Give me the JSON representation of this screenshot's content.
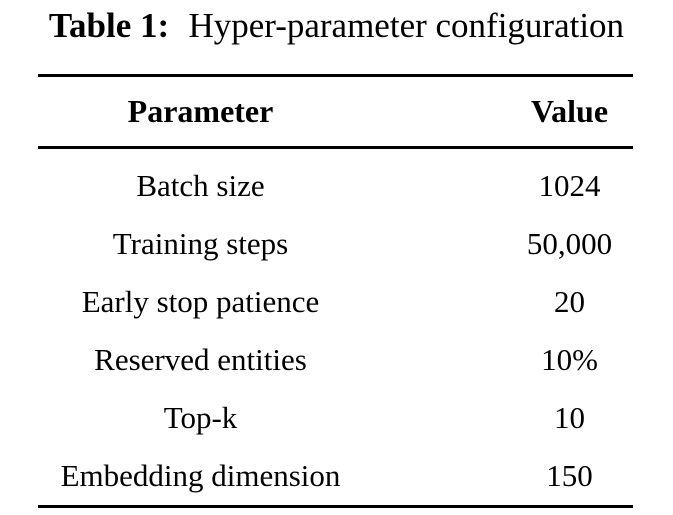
{
  "caption": {
    "label": "Table 1:",
    "text": "Hyper-parameter configuration"
  },
  "table": {
    "columns": [
      "Parameter",
      "Value"
    ],
    "rows": [
      {
        "parameter": "Batch size",
        "value": "1024"
      },
      {
        "parameter": "Training steps",
        "value": "50,000"
      },
      {
        "parameter": "Early stop patience",
        "value": "20"
      },
      {
        "parameter": "Reserved entities",
        "value": "10%"
      },
      {
        "parameter": "Top-k",
        "value": "10"
      },
      {
        "parameter": "Embedding dimension",
        "value": "150"
      }
    ]
  },
  "colors": {
    "background": "#ffffff",
    "text": "#000000",
    "rule": "#000000"
  }
}
